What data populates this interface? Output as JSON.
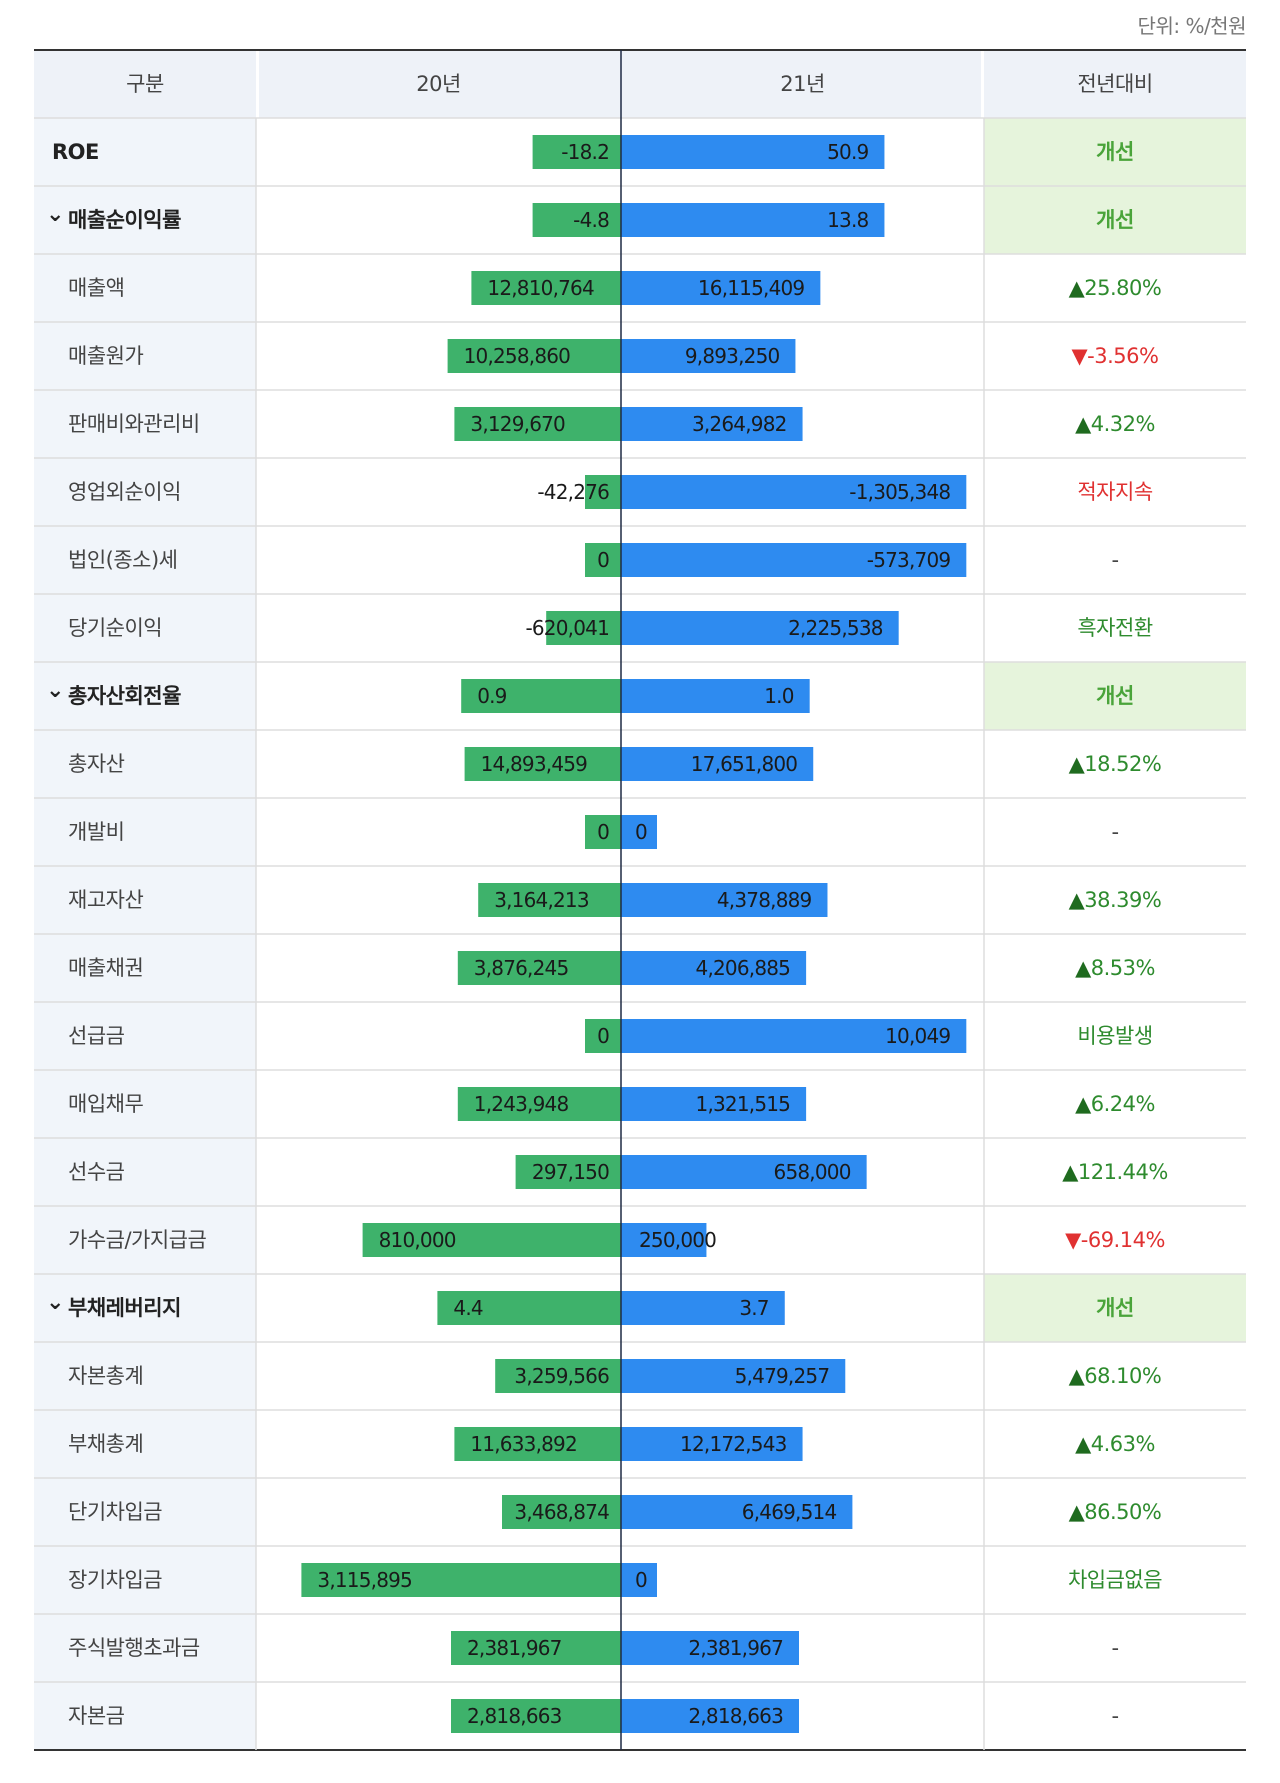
{
  "unit_label": "단위: %/천원",
  "headers": {
    "category": "구분",
    "prev_year": "20년",
    "curr_year": "21년",
    "comparison": "전년대비"
  },
  "colors": {
    "prev_bar": "#3eb26b",
    "curr_bar": "#2e8bf0",
    "highlight_bg": "#e6f4dc",
    "label_bg": "#f1f5fa",
    "header_bg": "#eef2f8",
    "good": "#2e8b2e",
    "bad": "#e03131"
  },
  "chart_data": {
    "type": "bar",
    "orientation": "horizontal-diverging",
    "series": [
      {
        "name": "20년",
        "values": [
          -18.2,
          -4.8,
          12810764,
          10258860,
          3129670,
          -42276,
          0,
          -620041,
          0.9,
          14893459,
          0,
          3164213,
          3876245,
          0,
          1243948,
          297150,
          810000,
          4.4,
          3259566,
          11633892,
          3468874,
          3115895,
          2381967,
          2818663
        ]
      },
      {
        "name": "21년",
        "values": [
          50.9,
          13.8,
          16115409,
          9893250,
          3264982,
          -1305348,
          -573709,
          2225538,
          1.0,
          17651800,
          0,
          4378889,
          4206885,
          10049,
          1321515,
          658000,
          250000,
          3.7,
          5479257,
          12172543,
          6469514,
          0,
          2381967,
          2818663
        ]
      }
    ],
    "rows": [
      {
        "label": "ROE",
        "level": 0,
        "prev": "-18.2",
        "curr": "50.9",
        "compare": "개선",
        "compare_type": "highlight",
        "prev_frac": 0.26,
        "curr_frac": 0.74
      },
      {
        "label": "매출순이익률",
        "level": 0,
        "expand": true,
        "prev": "-4.8",
        "curr": "13.8",
        "compare": "개선",
        "compare_type": "highlight",
        "prev_frac": 0.26,
        "curr_frac": 0.74
      },
      {
        "label": "매출액",
        "level": 1,
        "prev": "12,810,764",
        "curr": "16,115,409",
        "compare": "25.80%",
        "arrow": "up",
        "compare_type": "good",
        "prev_frac": 0.44,
        "curr_frac": 0.56
      },
      {
        "label": "매출원가",
        "level": 1,
        "prev": "10,258,860",
        "curr": "9,893,250",
        "compare": "-3.56%",
        "arrow": "down",
        "compare_type": "bad",
        "prev_frac": 0.51,
        "curr_frac": 0.49
      },
      {
        "label": "판매비와관리비",
        "level": 1,
        "prev": "3,129,670",
        "curr": "3,264,982",
        "compare": "4.32%",
        "arrow": "up",
        "compare_type": "good",
        "prev_frac": 0.49,
        "curr_frac": 0.51
      },
      {
        "label": "영업외순이익",
        "level": 1,
        "prev": "-42,276",
        "curr": "-1,305,348",
        "compare": "적자지속",
        "compare_type": "bad",
        "prev_frac": 0.03,
        "curr_frac": 0.97
      },
      {
        "label": "법인(종소)세",
        "level": 1,
        "prev": "0",
        "curr": "-573,709",
        "compare": "-",
        "compare_type": "plain",
        "prev_frac": 0.0,
        "curr_frac": 0.97
      },
      {
        "label": "당기순이익",
        "level": 1,
        "prev": "-620,041",
        "curr": "2,225,538",
        "compare": "흑자전환",
        "compare_type": "good",
        "prev_frac": 0.22,
        "curr_frac": 0.78
      },
      {
        "label": "총자산회전율",
        "level": 0,
        "expand": true,
        "prev": "0.9",
        "curr": "1.0",
        "compare": "개선",
        "compare_type": "highlight",
        "prev_frac": 0.47,
        "curr_frac": 0.53
      },
      {
        "label": "총자산",
        "level": 1,
        "prev": "14,893,459",
        "curr": "17,651,800",
        "compare": "18.52%",
        "arrow": "up",
        "compare_type": "good",
        "prev_frac": 0.46,
        "curr_frac": 0.54
      },
      {
        "label": "개발비",
        "level": 1,
        "prev": "0",
        "curr": "0",
        "compare": "-",
        "compare_type": "plain",
        "prev_frac": 0.0,
        "curr_frac": 0.0
      },
      {
        "label": "재고자산",
        "level": 1,
        "prev": "3,164,213",
        "curr": "4,378,889",
        "compare": "38.39%",
        "arrow": "up",
        "compare_type": "good",
        "prev_frac": 0.42,
        "curr_frac": 0.58
      },
      {
        "label": "매출채권",
        "level": 1,
        "prev": "3,876,245",
        "curr": "4,206,885",
        "compare": "8.53%",
        "arrow": "up",
        "compare_type": "good",
        "prev_frac": 0.48,
        "curr_frac": 0.52
      },
      {
        "label": "선급금",
        "level": 1,
        "prev": "0",
        "curr": "10,049",
        "compare": "비용발생",
        "compare_type": "good",
        "prev_frac": 0.0,
        "curr_frac": 0.97
      },
      {
        "label": "매입채무",
        "level": 1,
        "prev": "1,243,948",
        "curr": "1,321,515",
        "compare": "6.24%",
        "arrow": "up",
        "compare_type": "good",
        "prev_frac": 0.48,
        "curr_frac": 0.52
      },
      {
        "label": "선수금",
        "level": 1,
        "prev": "297,150",
        "curr": "658,000",
        "compare": "121.44%",
        "arrow": "up",
        "compare_type": "good",
        "prev_frac": 0.31,
        "curr_frac": 0.69
      },
      {
        "label": "가수금/가지급금",
        "level": 1,
        "prev": "810,000",
        "curr": "250,000",
        "compare": "-69.14%",
        "arrow": "down",
        "compare_type": "bad",
        "prev_frac": 0.76,
        "curr_frac": 0.24
      },
      {
        "label": "부채레버리지",
        "level": 0,
        "expand": true,
        "prev": "4.4",
        "curr": "3.7",
        "compare": "개선",
        "compare_type": "highlight",
        "prev_frac": 0.54,
        "curr_frac": 0.46
      },
      {
        "label": "자본총계",
        "level": 1,
        "prev": "3,259,566",
        "curr": "5,479,257",
        "compare": "68.10%",
        "arrow": "up",
        "compare_type": "good",
        "prev_frac": 0.37,
        "curr_frac": 0.63
      },
      {
        "label": "부채총계",
        "level": 1,
        "prev": "11,633,892",
        "curr": "12,172,543",
        "compare": "4.63%",
        "arrow": "up",
        "compare_type": "good",
        "prev_frac": 0.49,
        "curr_frac": 0.51
      },
      {
        "label": "단기차입금",
        "level": 1,
        "prev": "3,468,874",
        "curr": "6,469,514",
        "compare": "86.50%",
        "arrow": "up",
        "compare_type": "good",
        "prev_frac": 0.35,
        "curr_frac": 0.65
      },
      {
        "label": "장기차입금",
        "level": 1,
        "prev": "3,115,895",
        "curr": "0",
        "compare": "차입금없음",
        "compare_type": "good",
        "prev_frac": 0.94,
        "curr_frac": 0.0
      },
      {
        "label": "주식발행초과금",
        "level": 1,
        "prev": "2,381,967",
        "curr": "2,381,967",
        "compare": "-",
        "compare_type": "plain",
        "prev_frac": 0.5,
        "curr_frac": 0.5
      },
      {
        "label": "자본금",
        "level": 1,
        "prev": "2,818,663",
        "curr": "2,818,663",
        "compare": "-",
        "compare_type": "plain",
        "prev_frac": 0.5,
        "curr_frac": 0.5
      }
    ]
  }
}
